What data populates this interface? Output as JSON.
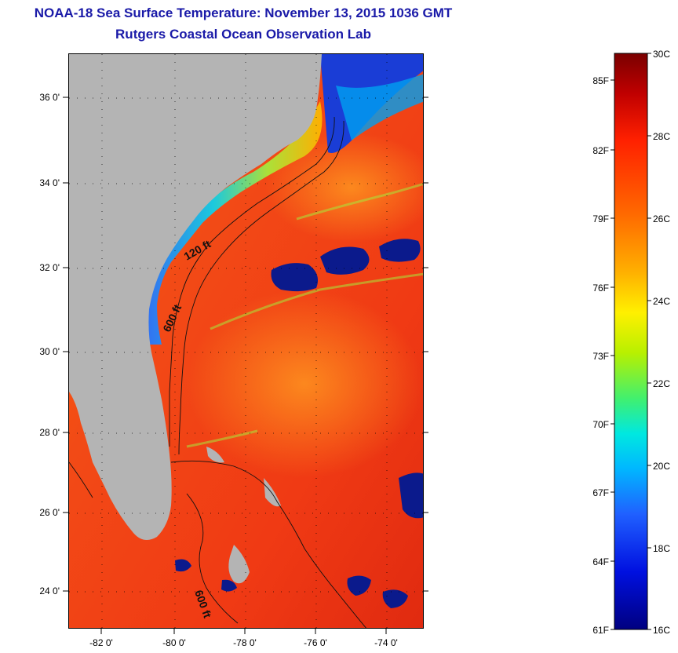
{
  "header": {
    "title": "NOAA-18 Sea Surface Temperature:  November 13, 2015 1036 GMT",
    "subtitle": "Rutgers Coastal Ocean Observation Lab"
  },
  "map": {
    "lat_range": [
      23,
      37
    ],
    "lon_range": [
      -83,
      -73
    ],
    "lat_ticks": [
      "36 0'",
      "34 0'",
      "32 0'",
      "30 0'",
      "28 0'",
      "26 0'",
      "24 0'"
    ],
    "lon_ticks": [
      "-82 0'",
      "-80 0'",
      "-78 0'",
      "-76 0'",
      "-74 0'"
    ],
    "contour_labels": [
      "120 ft",
      "600 ft",
      "600 ft"
    ],
    "colors": {
      "land": "#b4b4b4",
      "warm": "#f03a14",
      "cool": "#1a3dd6",
      "cloud": "#0b1a8c"
    }
  },
  "colorbar": {
    "celsius_labels": [
      "30C",
      "28C",
      "26C",
      "24C",
      "22C",
      "20C",
      "18C",
      "16C"
    ],
    "fahrenheit_labels": [
      "85F",
      "82F",
      "79F",
      "76F",
      "73F",
      "70F",
      "67F",
      "64F",
      "61F"
    ],
    "range_c": [
      16,
      30
    ]
  }
}
